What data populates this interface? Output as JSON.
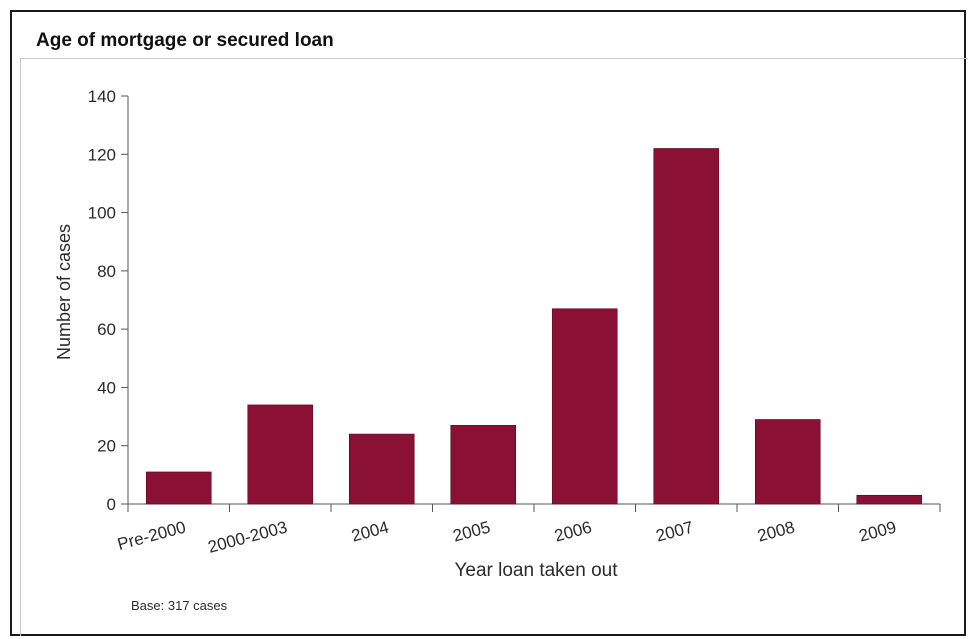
{
  "title": "Age of mortgage or secured loan",
  "note": "Base: 317 cases",
  "colors": {
    "bar": "#8B1035",
    "axis": "#555555",
    "text": "#2b2b2b"
  },
  "chart_data": {
    "type": "bar",
    "title": "Age of mortgage or secured loan",
    "xlabel": "Year loan taken out",
    "ylabel": "Number of cases",
    "categories": [
      "Pre-2000",
      "2000-2003",
      "2004",
      "2005",
      "2006",
      "2007",
      "2008",
      "2009"
    ],
    "values": [
      11,
      34,
      24,
      27,
      67,
      122,
      29,
      3
    ],
    "ylim": [
      0,
      140
    ],
    "yticks": [
      0,
      20,
      40,
      60,
      80,
      100,
      120,
      140
    ],
    "grid": false,
    "legend": "none"
  }
}
